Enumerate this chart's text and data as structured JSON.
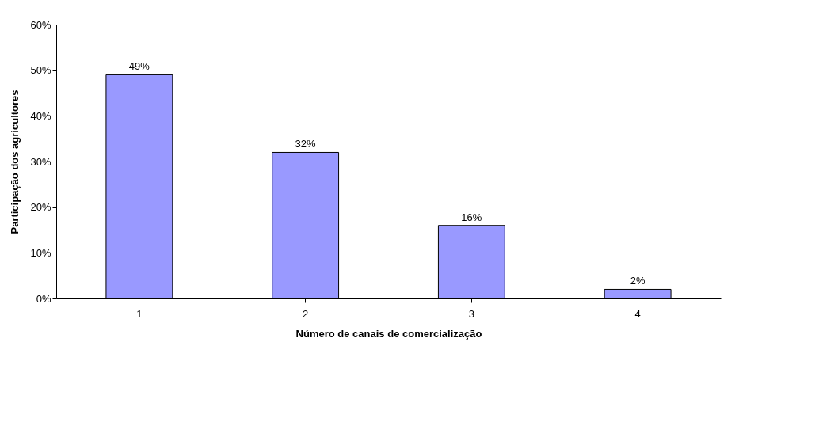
{
  "chart_data": {
    "type": "bar",
    "xlabel": "Número de canais de comercialização",
    "ylabel": "Participação dos agricultores",
    "categories": [
      "1",
      "2",
      "3",
      "4"
    ],
    "values": [
      49,
      32,
      16,
      2
    ],
    "value_labels": [
      "49%",
      "32%",
      "16%",
      "2%"
    ],
    "color": "#9999ff",
    "ylim": [
      0,
      60
    ],
    "yticks": [
      {
        "value": 0,
        "label": "0%"
      },
      {
        "value": 10,
        "label": "10%"
      },
      {
        "value": 20,
        "label": "20%"
      },
      {
        "value": 30,
        "label": "30%"
      },
      {
        "value": 40,
        "label": "40%"
      },
      {
        "value": 50,
        "label": "50%"
      },
      {
        "value": 60,
        "label": "60%"
      }
    ],
    "grid": false
  }
}
